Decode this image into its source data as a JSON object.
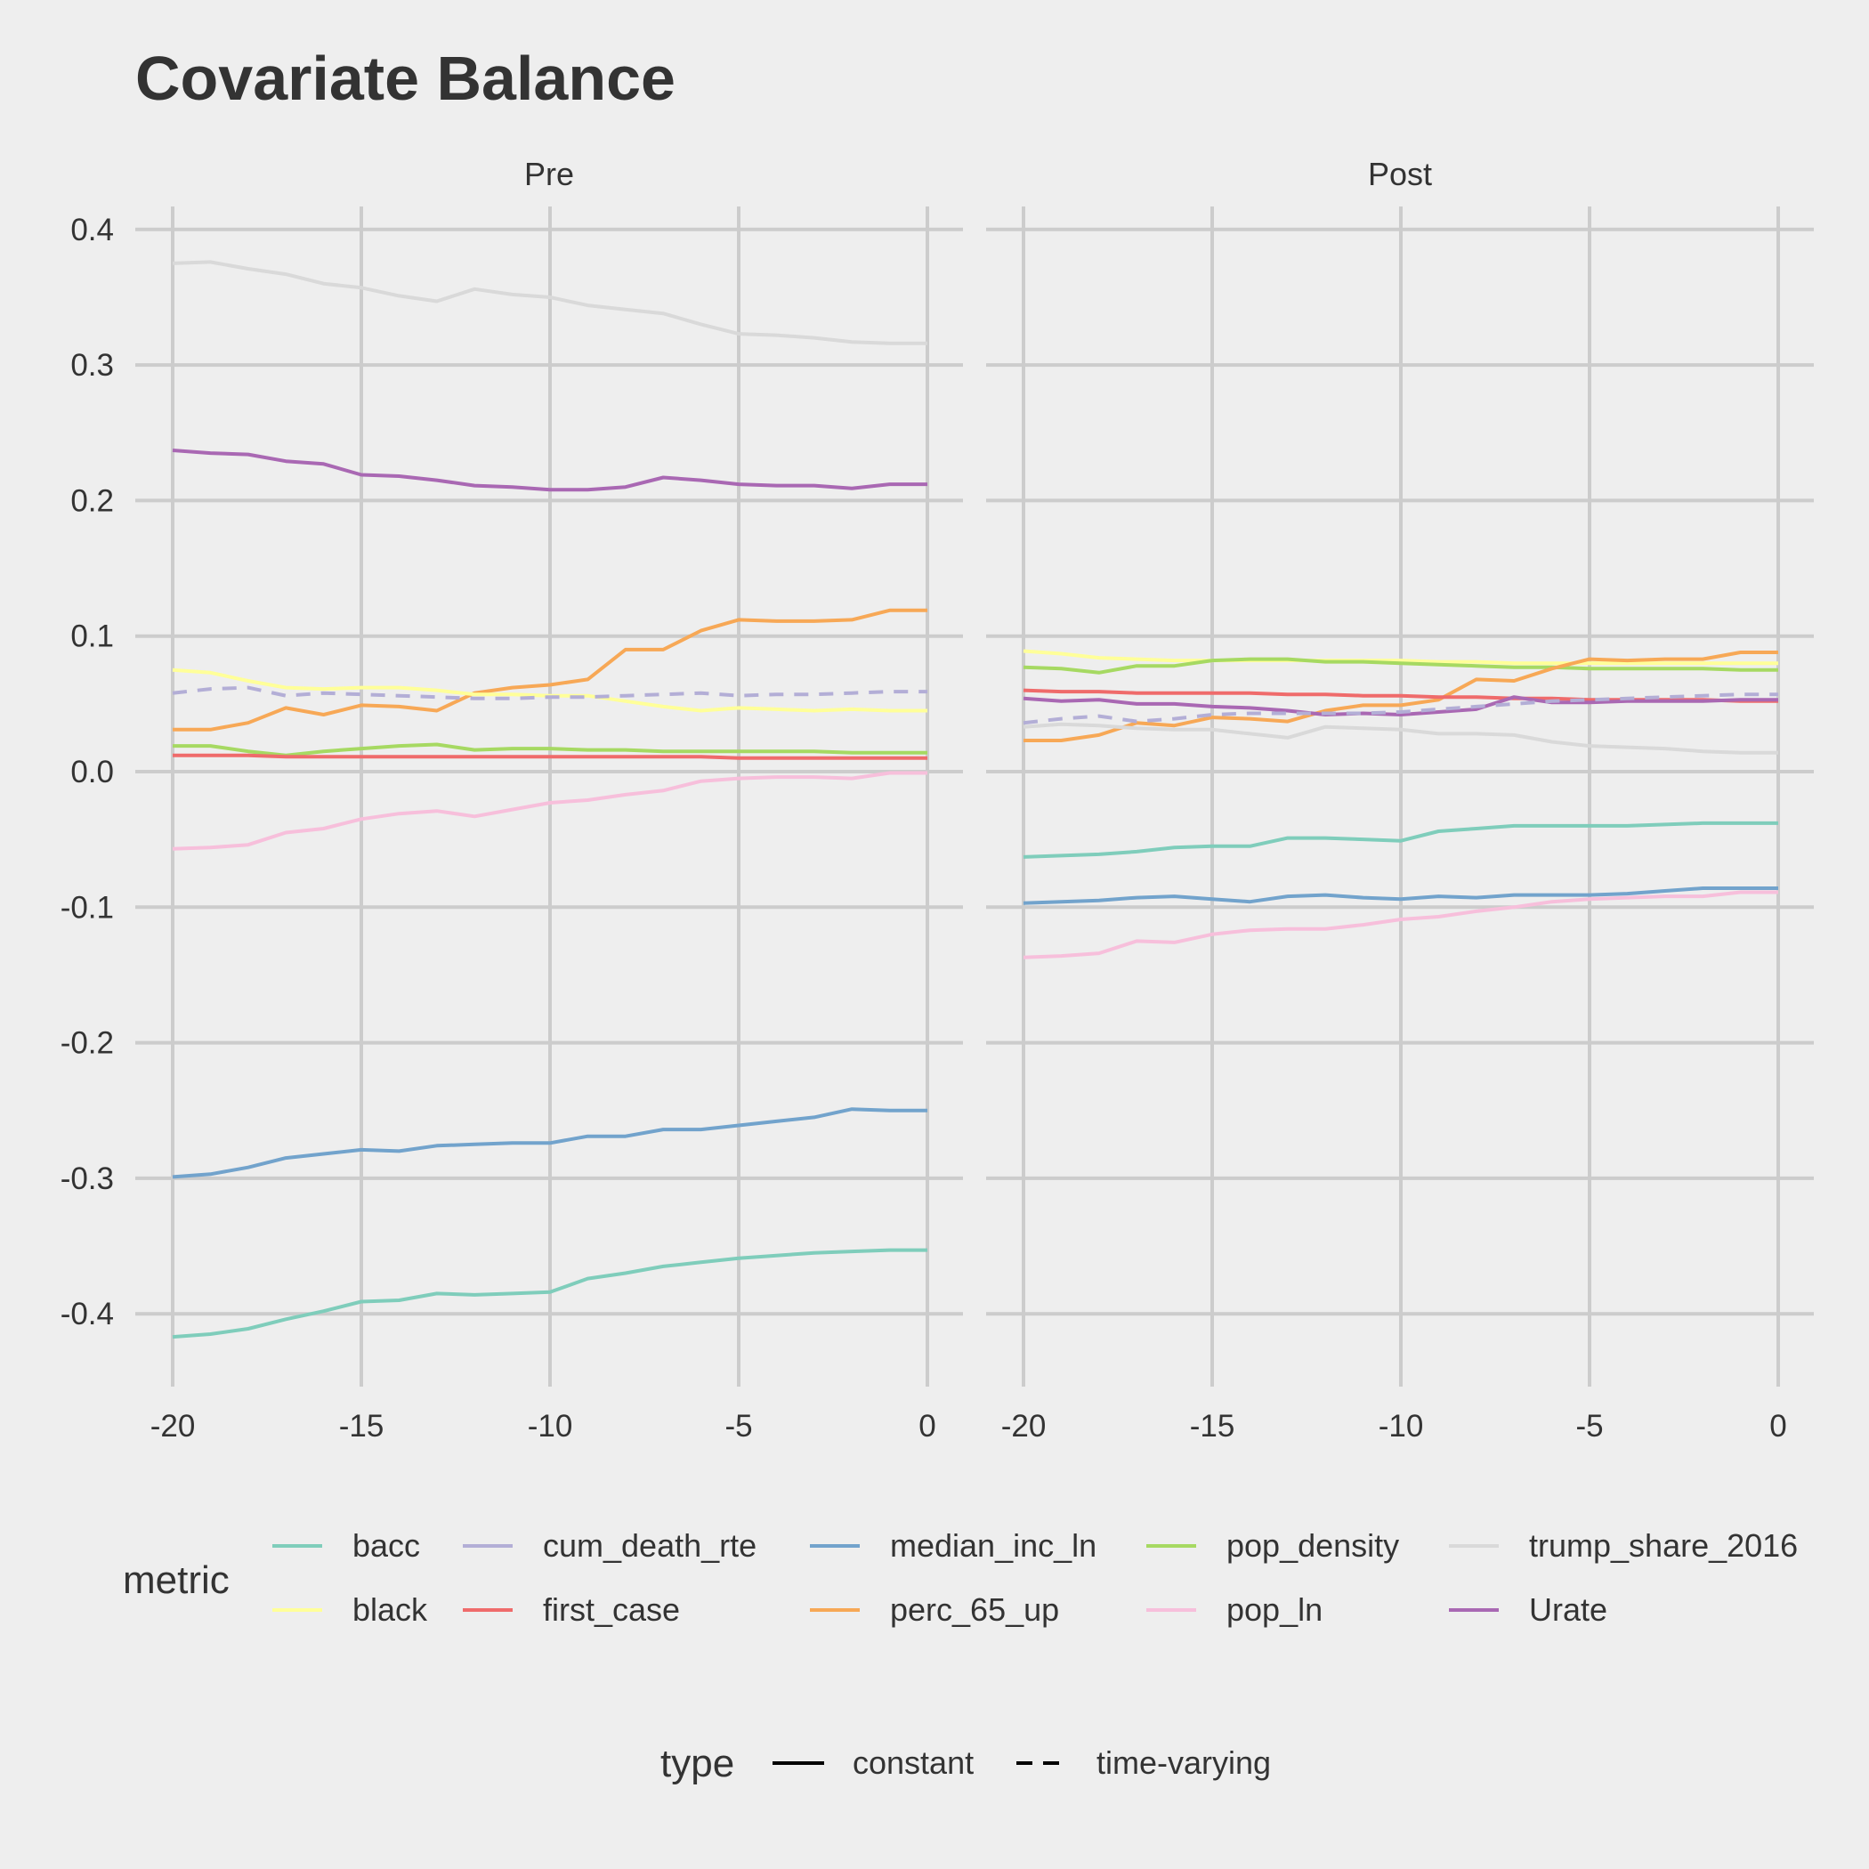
{
  "chart_data": {
    "type": "line",
    "title": "Covariate Balance",
    "xlabel": "",
    "ylabel": "",
    "xlim": [
      -20,
      0
    ],
    "ylim": [
      -0.45,
      0.42
    ],
    "x_ticks": [
      -20,
      -15,
      -10,
      -5,
      0
    ],
    "y_ticks": [
      0.4,
      0.3,
      0.2,
      0.1,
      0.0,
      -0.1,
      -0.2,
      -0.3,
      -0.4
    ],
    "y_tick_labels": [
      "0.4",
      "0.3",
      "0.2",
      "0.1",
      "0.0",
      "-0.1",
      "-0.2",
      "-0.3",
      "-0.4"
    ],
    "x_tick_labels": [
      "-20",
      "-15",
      "-10",
      "-5",
      "0"
    ],
    "grid": true,
    "x": [
      -20,
      -19,
      -18,
      -17,
      -16,
      -15,
      -14,
      -13,
      -12,
      -11,
      -10,
      -9,
      -8,
      -7,
      -6,
      -5,
      -4,
      -3,
      -2,
      -1,
      0
    ],
    "legend": {
      "metric_title": "metric",
      "type_title": "type",
      "placement": "bottom",
      "metric_entries": [
        {
          "name": "bacc",
          "color": "#7fcdbb"
        },
        {
          "name": "black",
          "color": "#ffff99"
        },
        {
          "name": "cum_death_rte",
          "color": "#b3aed6"
        },
        {
          "name": "first_case",
          "color": "#ef6b6b"
        },
        {
          "name": "median_inc_ln",
          "color": "#72a3cc"
        },
        {
          "name": "perc_65_up",
          "color": "#f7a856"
        },
        {
          "name": "pop_density",
          "color": "#a6d962"
        },
        {
          "name": "pop_ln",
          "color": "#f7bfdb"
        },
        {
          "name": "trump_share_2016",
          "color": "#d9d9d9"
        },
        {
          "name": "Urate",
          "color": "#a968b3"
        }
      ],
      "type_entries": [
        {
          "name": "constant",
          "dash": "solid"
        },
        {
          "name": "time-varying",
          "dash": "dashed"
        }
      ]
    },
    "panels": [
      {
        "label": "Pre",
        "series": [
          {
            "name": "trump_share_2016",
            "type": "constant",
            "values": [
              0.375,
              0.376,
              0.371,
              0.367,
              0.36,
              0.357,
              0.351,
              0.347,
              0.356,
              0.352,
              0.35,
              0.344,
              0.341,
              0.338,
              0.33,
              0.323,
              0.322,
              0.32,
              0.317,
              0.316,
              0.316
            ]
          },
          {
            "name": "Urate",
            "type": "constant",
            "values": [
              0.237,
              0.235,
              0.234,
              0.229,
              0.227,
              0.219,
              0.218,
              0.215,
              0.211,
              0.21,
              0.208,
              0.208,
              0.21,
              0.217,
              0.215,
              0.212,
              0.211,
              0.211,
              0.209,
              0.212,
              0.212
            ]
          },
          {
            "name": "perc_65_up",
            "type": "constant",
            "values": [
              0.031,
              0.031,
              0.036,
              0.047,
              0.042,
              0.049,
              0.048,
              0.045,
              0.058,
              0.062,
              0.064,
              0.068,
              0.09,
              0.09,
              0.104,
              0.112,
              0.111,
              0.111,
              0.112,
              0.119,
              0.119
            ]
          },
          {
            "name": "black",
            "type": "constant",
            "values": [
              0.075,
              0.073,
              0.067,
              0.062,
              0.061,
              0.062,
              0.062,
              0.06,
              0.057,
              0.057,
              0.056,
              0.056,
              0.052,
              0.048,
              0.045,
              0.047,
              0.046,
              0.045,
              0.046,
              0.045,
              0.045
            ]
          },
          {
            "name": "cum_death_rte",
            "type": "time-varying",
            "values": [
              0.058,
              0.061,
              0.062,
              0.056,
              0.058,
              0.057,
              0.056,
              0.055,
              0.054,
              0.054,
              0.055,
              0.055,
              0.056,
              0.057,
              0.058,
              0.056,
              0.057,
              0.057,
              0.058,
              0.059,
              0.059
            ]
          },
          {
            "name": "pop_density",
            "type": "constant",
            "values": [
              0.019,
              0.019,
              0.015,
              0.012,
              0.015,
              0.017,
              0.019,
              0.02,
              0.016,
              0.017,
              0.017,
              0.016,
              0.016,
              0.015,
              0.015,
              0.015,
              0.015,
              0.015,
              0.014,
              0.014,
              0.014
            ]
          },
          {
            "name": "first_case",
            "type": "constant",
            "values": [
              0.012,
              0.012,
              0.012,
              0.011,
              0.011,
              0.011,
              0.011,
              0.011,
              0.011,
              0.011,
              0.011,
              0.011,
              0.011,
              0.011,
              0.011,
              0.01,
              0.01,
              0.01,
              0.01,
              0.01,
              0.01
            ]
          },
          {
            "name": "pop_ln",
            "type": "constant",
            "values": [
              -0.057,
              -0.056,
              -0.054,
              -0.045,
              -0.042,
              -0.035,
              -0.031,
              -0.029,
              -0.033,
              -0.028,
              -0.023,
              -0.021,
              -0.017,
              -0.014,
              -0.007,
              -0.005,
              -0.004,
              -0.004,
              -0.005,
              -0.001,
              -0.001
            ]
          },
          {
            "name": "median_inc_ln",
            "type": "constant",
            "values": [
              -0.299,
              -0.297,
              -0.292,
              -0.285,
              -0.282,
              -0.279,
              -0.28,
              -0.276,
              -0.275,
              -0.274,
              -0.274,
              -0.269,
              -0.269,
              -0.264,
              -0.264,
              -0.261,
              -0.258,
              -0.255,
              -0.249,
              -0.25,
              -0.25
            ]
          },
          {
            "name": "bacc",
            "type": "constant",
            "values": [
              -0.417,
              -0.415,
              -0.411,
              -0.404,
              -0.398,
              -0.391,
              -0.39,
              -0.385,
              -0.386,
              -0.385,
              -0.384,
              -0.374,
              -0.37,
              -0.365,
              -0.362,
              -0.359,
              -0.357,
              -0.355,
              -0.354,
              -0.353,
              -0.353
            ]
          }
        ]
      },
      {
        "label": "Post",
        "series": [
          {
            "name": "black",
            "type": "constant",
            "values": [
              0.089,
              0.087,
              0.084,
              0.083,
              0.082,
              0.082,
              0.082,
              0.082,
              0.082,
              0.082,
              0.082,
              0.081,
              0.081,
              0.08,
              0.08,
              0.08,
              0.08,
              0.08,
              0.08,
              0.08,
              0.08
            ]
          },
          {
            "name": "pop_density",
            "type": "constant",
            "values": [
              0.077,
              0.076,
              0.073,
              0.078,
              0.078,
              0.082,
              0.083,
              0.083,
              0.081,
              0.081,
              0.08,
              0.079,
              0.078,
              0.077,
              0.077,
              0.076,
              0.076,
              0.076,
              0.076,
              0.075,
              0.075
            ]
          },
          {
            "name": "perc_65_up",
            "type": "constant",
            "values": [
              0.023,
              0.023,
              0.027,
              0.036,
              0.034,
              0.04,
              0.039,
              0.037,
              0.045,
              0.049,
              0.049,
              0.053,
              0.068,
              0.067,
              0.076,
              0.083,
              0.082,
              0.083,
              0.083,
              0.088,
              0.088
            ]
          },
          {
            "name": "first_case",
            "type": "constant",
            "values": [
              0.06,
              0.059,
              0.059,
              0.058,
              0.058,
              0.058,
              0.058,
              0.057,
              0.057,
              0.056,
              0.056,
              0.055,
              0.055,
              0.054,
              0.054,
              0.053,
              0.053,
              0.053,
              0.053,
              0.052,
              0.052
            ]
          },
          {
            "name": "Urate",
            "type": "constant",
            "values": [
              0.054,
              0.052,
              0.053,
              0.05,
              0.05,
              0.048,
              0.047,
              0.045,
              0.042,
              0.043,
              0.042,
              0.044,
              0.046,
              0.055,
              0.051,
              0.051,
              0.052,
              0.052,
              0.052,
              0.053,
              0.053
            ]
          },
          {
            "name": "cum_death_rte",
            "type": "time-varying",
            "values": [
              0.036,
              0.039,
              0.041,
              0.037,
              0.039,
              0.042,
              0.043,
              0.043,
              0.043,
              0.043,
              0.044,
              0.046,
              0.048,
              0.05,
              0.052,
              0.053,
              0.054,
              0.055,
              0.056,
              0.057,
              0.057
            ]
          },
          {
            "name": "trump_share_2016",
            "type": "constant",
            "values": [
              0.033,
              0.035,
              0.034,
              0.032,
              0.031,
              0.031,
              0.028,
              0.025,
              0.033,
              0.032,
              0.031,
              0.028,
              0.028,
              0.027,
              0.022,
              0.019,
              0.018,
              0.017,
              0.015,
              0.014,
              0.014
            ]
          },
          {
            "name": "bacc",
            "type": "constant",
            "values": [
              -0.063,
              -0.062,
              -0.061,
              -0.059,
              -0.056,
              -0.055,
              -0.055,
              -0.049,
              -0.049,
              -0.05,
              -0.051,
              -0.044,
              -0.042,
              -0.04,
              -0.04,
              -0.04,
              -0.04,
              -0.039,
              -0.038,
              -0.038,
              -0.038
            ]
          },
          {
            "name": "median_inc_ln",
            "type": "constant",
            "values": [
              -0.097,
              -0.096,
              -0.095,
              -0.093,
              -0.092,
              -0.094,
              -0.096,
              -0.092,
              -0.091,
              -0.093,
              -0.094,
              -0.092,
              -0.093,
              -0.091,
              -0.091,
              -0.091,
              -0.09,
              -0.088,
              -0.086,
              -0.086,
              -0.086
            ]
          },
          {
            "name": "pop_ln",
            "type": "constant",
            "values": [
              -0.137,
              -0.136,
              -0.134,
              -0.125,
              -0.126,
              -0.12,
              -0.117,
              -0.116,
              -0.116,
              -0.113,
              -0.109,
              -0.107,
              -0.103,
              -0.1,
              -0.096,
              -0.094,
              -0.093,
              -0.092,
              -0.092,
              -0.089,
              -0.089
            ]
          }
        ]
      }
    ]
  }
}
